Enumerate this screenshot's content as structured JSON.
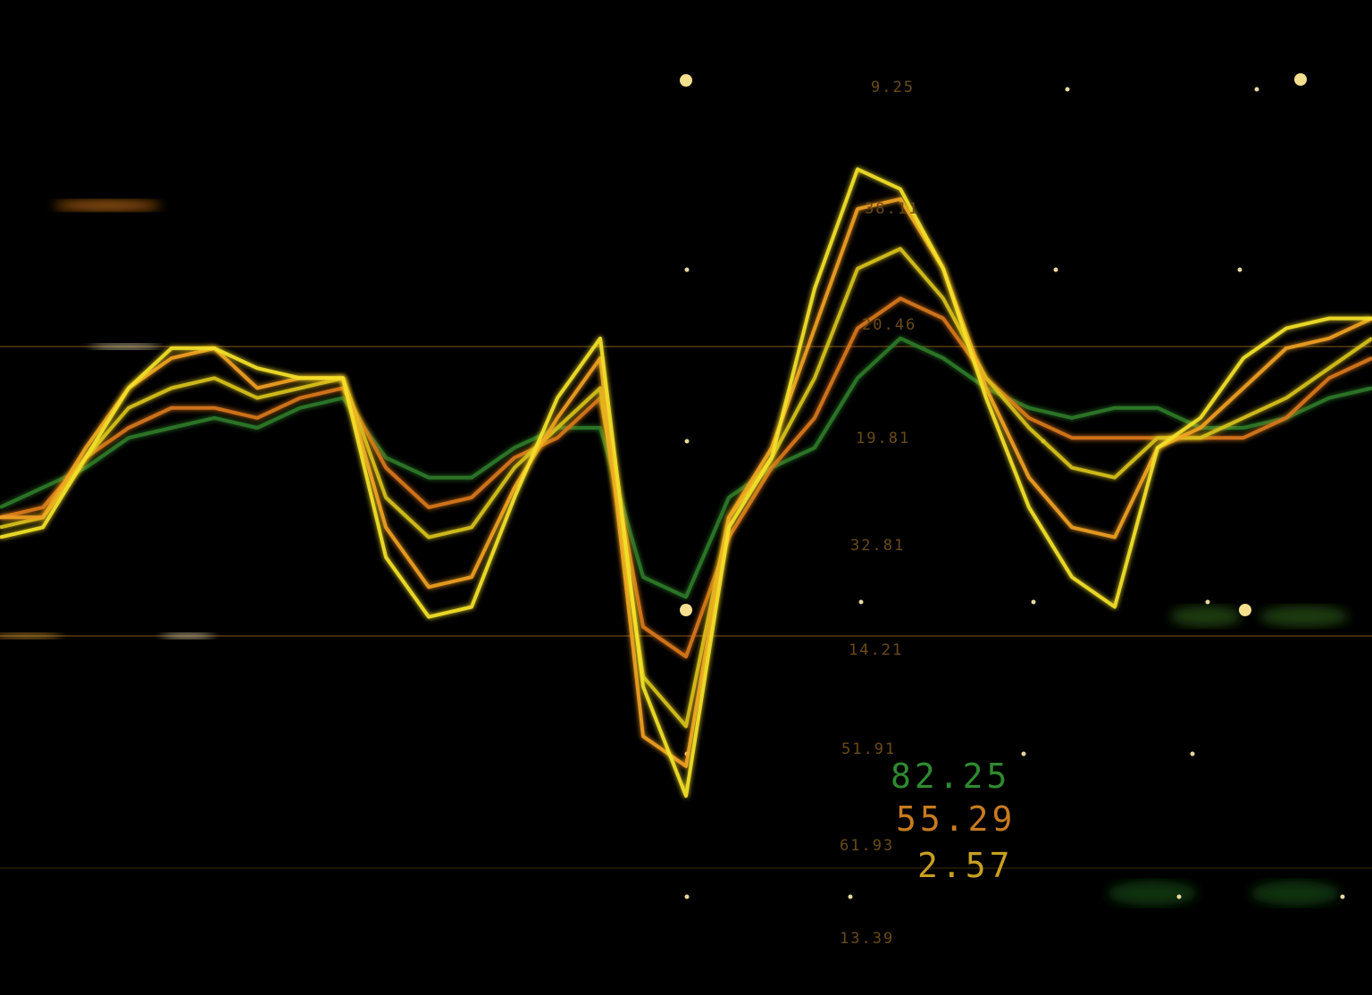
{
  "chart_data": {
    "type": "line",
    "categories": [
      null,
      null,
      null,
      null,
      null,
      null,
      null,
      null,
      null,
      null,
      null,
      null,
      null,
      null,
      null,
      null,
      null,
      null,
      null,
      null,
      null,
      null,
      null,
      null,
      null,
      null,
      null,
      null,
      null,
      null,
      null,
      null,
      null
    ],
    "ylim": [
      0,
      100
    ],
    "series": [
      {
        "color": "#2f7a2a",
        "values": [
          49,
          51,
          53,
          56,
          57,
          58,
          57,
          59,
          60,
          54,
          52,
          52,
          55,
          57,
          57,
          42,
          40,
          50,
          53,
          55,
          62,
          66,
          64,
          61,
          59,
          58,
          59,
          59,
          57,
          57,
          58,
          60,
          61
        ]
      },
      {
        "color": "#d9781a",
        "values": [
          48,
          49,
          54,
          57,
          59,
          59,
          58,
          60,
          61,
          53,
          49,
          50,
          54,
          56,
          60,
          37,
          34,
          46,
          53,
          58,
          67,
          70,
          68,
          62,
          58,
          56,
          56,
          56,
          56,
          56,
          58,
          62,
          64
        ]
      },
      {
        "color": "#d8c21e",
        "values": [
          47,
          48,
          54,
          59,
          61,
          62,
          60,
          61,
          62,
          50,
          46,
          47,
          53,
          57,
          61,
          32,
          27,
          48,
          54,
          62,
          73,
          75,
          70,
          62,
          57,
          53,
          52,
          56,
          56,
          58,
          60,
          63,
          66
        ]
      },
      {
        "color": "#f0a020",
        "values": [
          48,
          48,
          55,
          61,
          64,
          65,
          61,
          62,
          62,
          47,
          41,
          42,
          51,
          58,
          64,
          26,
          23,
          48,
          55,
          67,
          79,
          80,
          73,
          61,
          52,
          47,
          46,
          55,
          57,
          61,
          65,
          66,
          68
        ]
      },
      {
        "color": "#f5e22a",
        "values": [
          46,
          47,
          54,
          61,
          65,
          65,
          63,
          62,
          62,
          44,
          38,
          39,
          50,
          60,
          66,
          31,
          20,
          47,
          54,
          71,
          83,
          81,
          73,
          60,
          49,
          42,
          39,
          55,
          58,
          64,
          67,
          68,
          68
        ]
      }
    ],
    "labels": [
      "9.25",
      "38.11",
      "20.46",
      "19.81",
      "32.81",
      "14.21",
      "51.91",
      "61.93",
      "13.39"
    ],
    "readouts": [
      {
        "text": "82.25",
        "color": "#2f8a30"
      },
      {
        "text": "55.29",
        "color": "#c87a1e"
      },
      {
        "text": "2.57",
        "color": "#c8a020"
      }
    ]
  }
}
